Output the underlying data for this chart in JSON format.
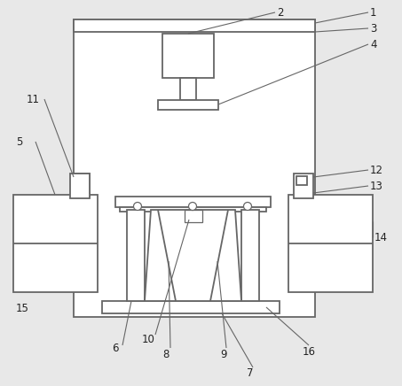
{
  "bg_color": "#e8e8e8",
  "line_color": "#666666",
  "fill_color": "#ffffff",
  "figsize": [
    4.53,
    4.36
  ],
  "dpi": 100
}
